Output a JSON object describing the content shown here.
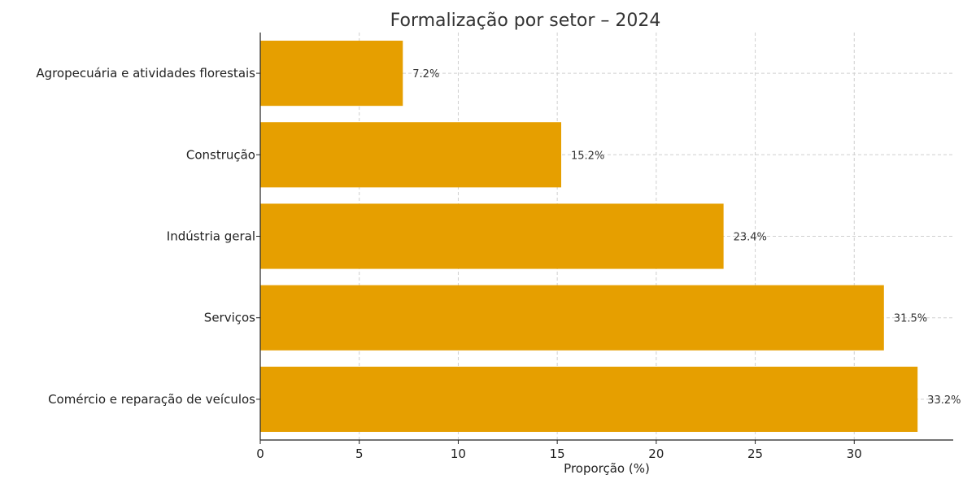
{
  "chart_data": {
    "type": "bar",
    "orientation": "horizontal",
    "title": "Formalização por setor – 2024",
    "xlabel": "Proporção (%)",
    "ylabel": "",
    "categories": [
      "Agropecuária e atividades florestais",
      "Construção",
      "Indústria geral",
      "Serviços",
      "Comércio e reparação de veículos"
    ],
    "values": [
      7.2,
      15.2,
      23.4,
      31.5,
      33.2
    ],
    "data_labels": [
      "7.2%",
      "15.2%",
      "23.4%",
      "31.5%",
      "33.2%"
    ],
    "xlim": [
      0,
      35
    ],
    "xticks": [
      0,
      5,
      10,
      15,
      20,
      25,
      30
    ],
    "xtick_labels": [
      "0",
      "5",
      "10",
      "15",
      "20",
      "25",
      "30"
    ],
    "grid": true,
    "bar_color": "#E69F00"
  }
}
